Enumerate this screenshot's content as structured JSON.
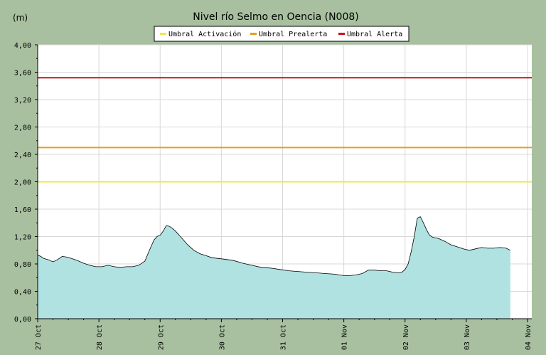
{
  "chart_data": {
    "type": "area",
    "title": "Nivel río Selmo en Oencia  (N008)",
    "unit_label": "(m)",
    "ylim": [
      0,
      4
    ],
    "y_ticks": [
      "0,00",
      "0,40",
      "0,80",
      "1,20",
      "1,60",
      "2,00",
      "2,40",
      "2,80",
      "3,20",
      "3,60",
      "4,00"
    ],
    "x_ticks": [
      "27 Oct",
      "28 Oct",
      "29 Oct",
      "30 Oct",
      "31 Oct",
      "01 Nov",
      "02 Nov",
      "03 Nov",
      "04 Nov"
    ],
    "grid": true,
    "legend_position": "top-center",
    "colors": {
      "background": "#a8c0a0",
      "plot_bg": "#ffffff",
      "grid": "#d8d8d8",
      "area_fill": "#b0e2e2",
      "area_line": "#000000",
      "activacion": "#f2e64a",
      "prealerta": "#e0a020",
      "alerta": "#c81414"
    },
    "thresholds": [
      {
        "name": "Umbral Activación",
        "value": 2.0,
        "color": "#f2e64a"
      },
      {
        "name": "Umbral Prealerta",
        "value": 2.5,
        "color": "#e0a020"
      },
      {
        "name": "Umbral Alerta",
        "value": 3.52,
        "color": "#c81414"
      }
    ],
    "series": [
      {
        "x_days": [
          0.0,
          0.05,
          0.1,
          0.18,
          0.25,
          0.32,
          0.4,
          0.48,
          0.55,
          0.65,
          0.75,
          0.85,
          0.95,
          1.05,
          1.15,
          1.25,
          1.35,
          1.45,
          1.55,
          1.65,
          1.75,
          1.85,
          1.9,
          1.95,
          2.0,
          2.05,
          2.1,
          2.15,
          2.2,
          2.25,
          2.35,
          2.45,
          2.55,
          2.65,
          2.75,
          2.85,
          2.95,
          3.05,
          3.2,
          3.35,
          3.5,
          3.65,
          3.8,
          3.95,
          4.1,
          4.25,
          4.4,
          4.55,
          4.7,
          4.85,
          5.0,
          5.1,
          5.2,
          5.3,
          5.4,
          5.5,
          5.6,
          5.7,
          5.8,
          5.9,
          5.95,
          6.0,
          6.05,
          6.1,
          6.15,
          6.2,
          6.25,
          6.3,
          6.35,
          6.4,
          6.45,
          6.5,
          6.55,
          6.65,
          6.75,
          6.85,
          6.95,
          7.05,
          7.15,
          7.25,
          7.35,
          7.45,
          7.55,
          7.65,
          7.72
        ],
        "values": [
          0.93,
          0.91,
          0.88,
          0.86,
          0.83,
          0.86,
          0.91,
          0.9,
          0.88,
          0.85,
          0.81,
          0.78,
          0.76,
          0.76,
          0.78,
          0.76,
          0.75,
          0.76,
          0.76,
          0.78,
          0.84,
          1.05,
          1.15,
          1.2,
          1.22,
          1.28,
          1.36,
          1.35,
          1.32,
          1.28,
          1.18,
          1.08,
          1.0,
          0.95,
          0.92,
          0.89,
          0.88,
          0.87,
          0.85,
          0.81,
          0.78,
          0.75,
          0.74,
          0.72,
          0.7,
          0.69,
          0.68,
          0.67,
          0.66,
          0.65,
          0.63,
          0.63,
          0.64,
          0.66,
          0.71,
          0.71,
          0.7,
          0.7,
          0.68,
          0.67,
          0.68,
          0.72,
          0.8,
          0.98,
          1.2,
          1.47,
          1.49,
          1.4,
          1.3,
          1.22,
          1.19,
          1.18,
          1.17,
          1.13,
          1.08,
          1.05,
          1.02,
          1.0,
          1.02,
          1.04,
          1.03,
          1.03,
          1.04,
          1.03,
          1.0
        ]
      }
    ]
  }
}
